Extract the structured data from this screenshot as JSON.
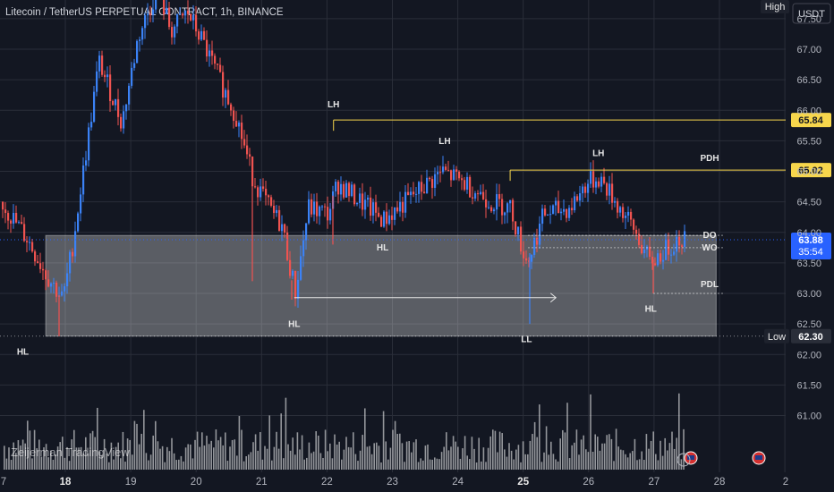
{
  "header": {
    "title": "Litecoin / TetherUS PERPETUAL CONTRACT, 1h, BINANCE"
  },
  "badges": {
    "high": "High",
    "currency": "USDT",
    "low": "Low"
  },
  "watermark": "Zeijerman TradingView",
  "colors": {
    "background": "#131722",
    "up": "#3b82f6",
    "down": "#ef5350",
    "level_line": "#f7d64c",
    "current_price": "#2962ff",
    "zone": "#ffffff"
  },
  "chart_data": {
    "type": "candlestick",
    "title": "Litecoin / TetherUS PERPETUAL CONTRACT, 1h, BINANCE",
    "y_axis": {
      "ticks": [
        "67.50",
        "67.00",
        "66.50",
        "66.00",
        "65.50",
        "65.00",
        "64.50",
        "64.00",
        "63.50",
        "63.00",
        "62.50",
        "62.00",
        "61.50",
        "61.00"
      ],
      "range": [
        60.7,
        68.1
      ]
    },
    "x_axis": {
      "ticks": [
        {
          "label": "7",
          "bold": false
        },
        {
          "label": "18",
          "bold": true
        },
        {
          "label": "19",
          "bold": false
        },
        {
          "label": "20",
          "bold": false
        },
        {
          "label": "21",
          "bold": false
        },
        {
          "label": "22",
          "bold": false
        },
        {
          "label": "23",
          "bold": false
        },
        {
          "label": "24",
          "bold": false
        },
        {
          "label": "25",
          "bold": true
        },
        {
          "label": "26",
          "bold": false
        },
        {
          "label": "27",
          "bold": false
        },
        {
          "label": "28",
          "bold": false
        },
        {
          "label": "2",
          "bold": false
        }
      ]
    },
    "price_path": [
      [
        "17",
        64.5
      ],
      [
        "17.4",
        63.9
      ],
      [
        "17.7",
        63.3
      ],
      [
        "17.95",
        62.9
      ],
      [
        "18.1",
        63.8
      ],
      [
        "18.5",
        66.8
      ],
      [
        "18.85",
        65.8
      ],
      [
        "19.1",
        67.2
      ],
      [
        "19.4",
        68.0
      ],
      [
        "19.6",
        67.3
      ],
      [
        "19.85",
        67.6
      ],
      [
        "20.05",
        67.2
      ],
      [
        "20.3",
        66.6
      ],
      [
        "20.6",
        65.9
      ],
      [
        "20.85",
        64.9
      ],
      [
        "21.1",
        64.4
      ],
      [
        "21.3",
        64.1
      ],
      [
        "21.5",
        63.0
      ],
      [
        "21.7",
        64.4
      ],
      [
        "22.0",
        64.3
      ],
      [
        "22.15",
        64.8
      ],
      [
        "22.5",
        64.5
      ],
      [
        "22.85",
        64.2
      ],
      [
        "23.3",
        64.6
      ],
      [
        "23.75",
        65.0
      ],
      [
        "24.1",
        64.8
      ],
      [
        "24.5",
        64.5
      ],
      [
        "24.8",
        64.4
      ],
      [
        "24.92",
        63.9
      ],
      [
        "25.05",
        63.5
      ],
      [
        "25.3",
        64.3
      ],
      [
        "25.7",
        64.4
      ],
      [
        "25.95",
        64.8
      ],
      [
        "26.15",
        64.9
      ],
      [
        "26.4",
        64.5
      ],
      [
        "26.7",
        64.0
      ],
      [
        "26.92",
        63.5
      ],
      [
        "27.15",
        63.7
      ],
      [
        "27.35",
        63.9
      ]
    ],
    "levels": [
      {
        "label": "65.84",
        "value": 65.84,
        "start": "22.1"
      },
      {
        "label": "65.02",
        "value": 65.02,
        "start": "24.8",
        "name": "PDH"
      }
    ],
    "reference_levels": [
      {
        "name": "DO",
        "value": 63.95
      },
      {
        "name": "WO",
        "value": 63.75
      },
      {
        "name": "PDL",
        "value": 63.0
      }
    ],
    "current_price": {
      "value": "63.88",
      "countdown": "35:54"
    },
    "low_price": {
      "value": "62.30"
    },
    "zone": {
      "top": 63.95,
      "bottom": 62.3,
      "start": "17.7",
      "end": "27.95"
    },
    "annotations": [
      {
        "text": "LH",
        "x": "22.1",
        "y": 66.05
      },
      {
        "text": "LH",
        "x": "23.8",
        "y": 65.45
      },
      {
        "text": "LH",
        "x": "26.15",
        "y": 65.25
      },
      {
        "text": "HL",
        "x": "22.85",
        "y": 63.7
      },
      {
        "text": "HL",
        "x": "21.5",
        "y": 62.45
      },
      {
        "text": "HL",
        "x": "17.35",
        "y": 62.0
      },
      {
        "text": "LL",
        "x": "25.05",
        "y": 62.2
      },
      {
        "text": "HL",
        "x": "26.95",
        "y": 62.7
      }
    ],
    "arrow": {
      "from": {
        "x": "21.5",
        "y": 62.93
      },
      "to": {
        "x": "25.5",
        "y": 62.93
      }
    }
  }
}
